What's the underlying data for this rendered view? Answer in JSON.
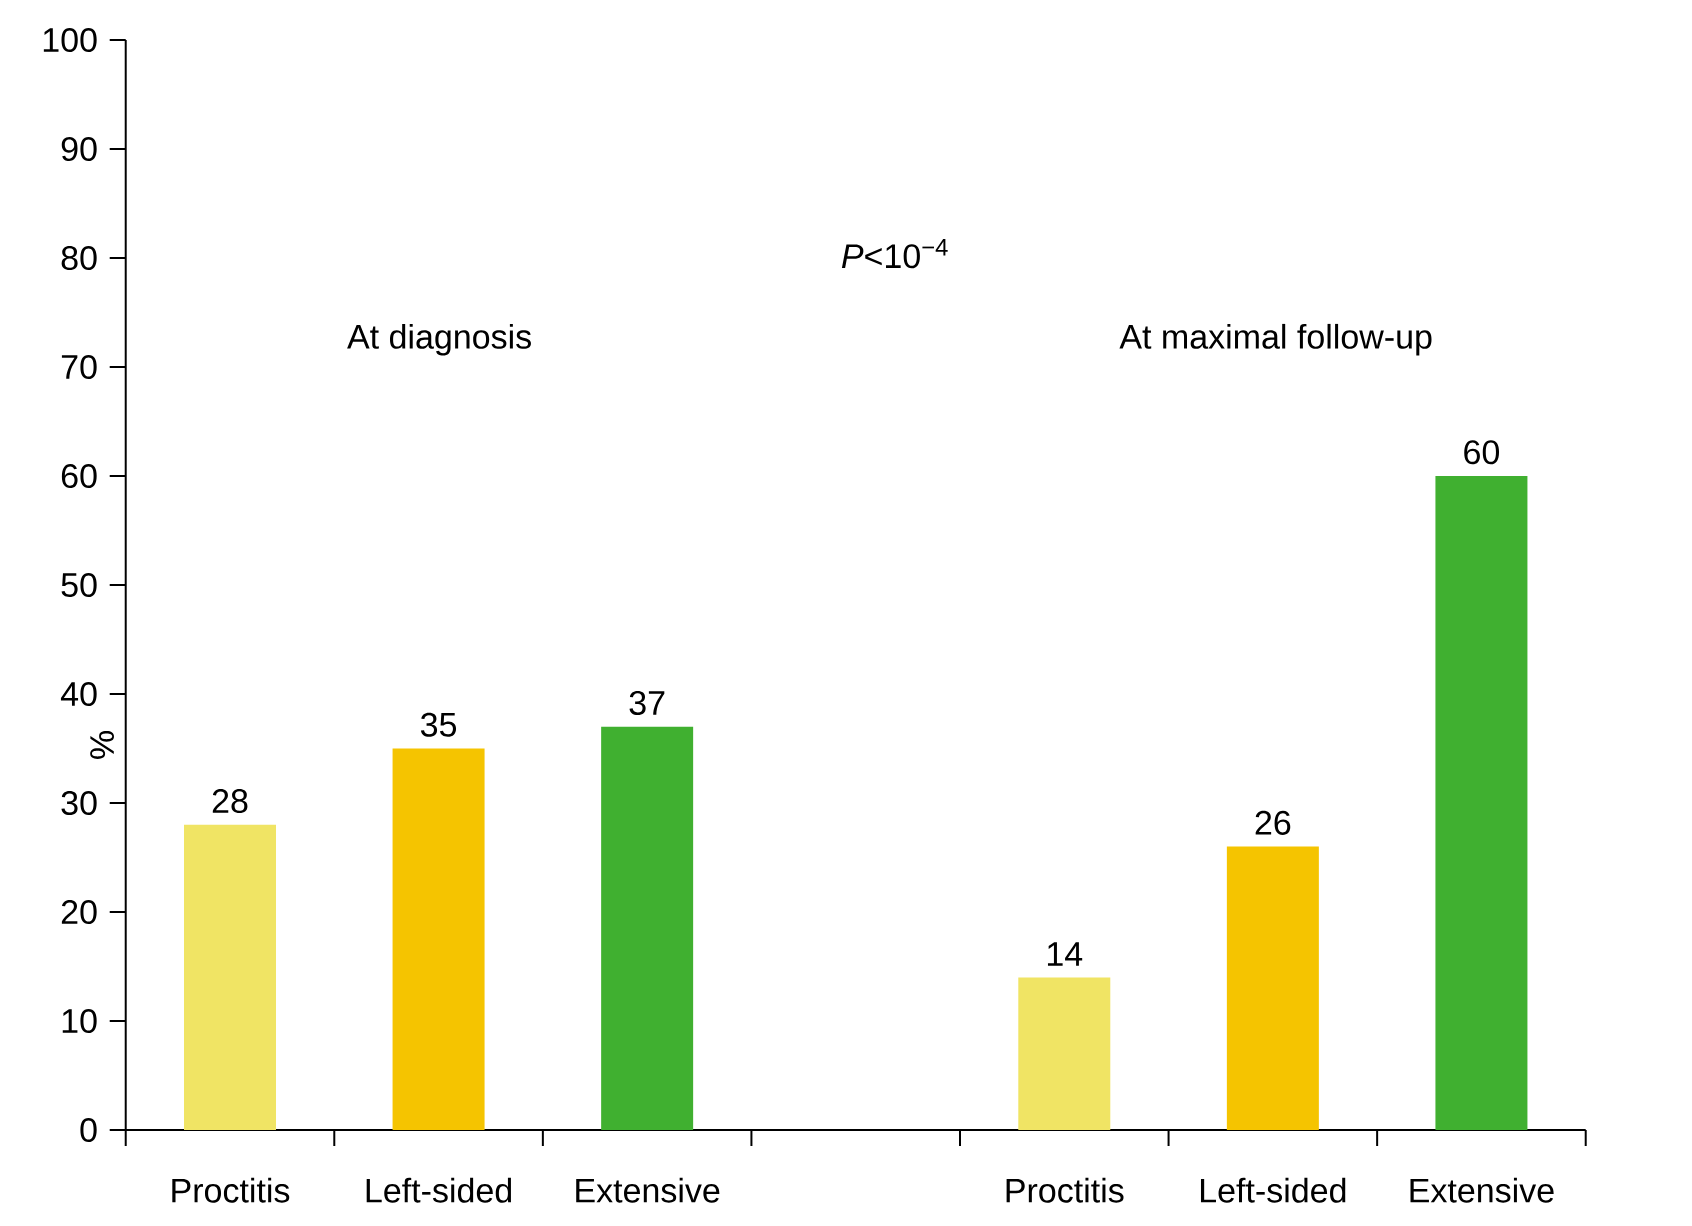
{
  "chart_data": {
    "type": "bar",
    "ylabel": "%",
    "categories": [
      "Proctitis",
      "Left-sided",
      "Extensive",
      null,
      "Proctitis",
      "Left-sided",
      "Extensive"
    ],
    "values": [
      28,
      35,
      37,
      null,
      14,
      26,
      60
    ],
    "colors": [
      "#f0e464",
      "#f5c400",
      "#40b030",
      null,
      "#f0e464",
      "#f5c400",
      "#40b030"
    ],
    "data_labels": true,
    "ylim": [
      0,
      100
    ],
    "yticks": [
      0,
      10,
      20,
      30,
      40,
      50,
      60,
      70,
      80,
      90,
      100
    ],
    "annotations": [
      "At diagnosis",
      "*P*<10$^{−4}$",
      "At maximal follow-up"
    ]
  }
}
